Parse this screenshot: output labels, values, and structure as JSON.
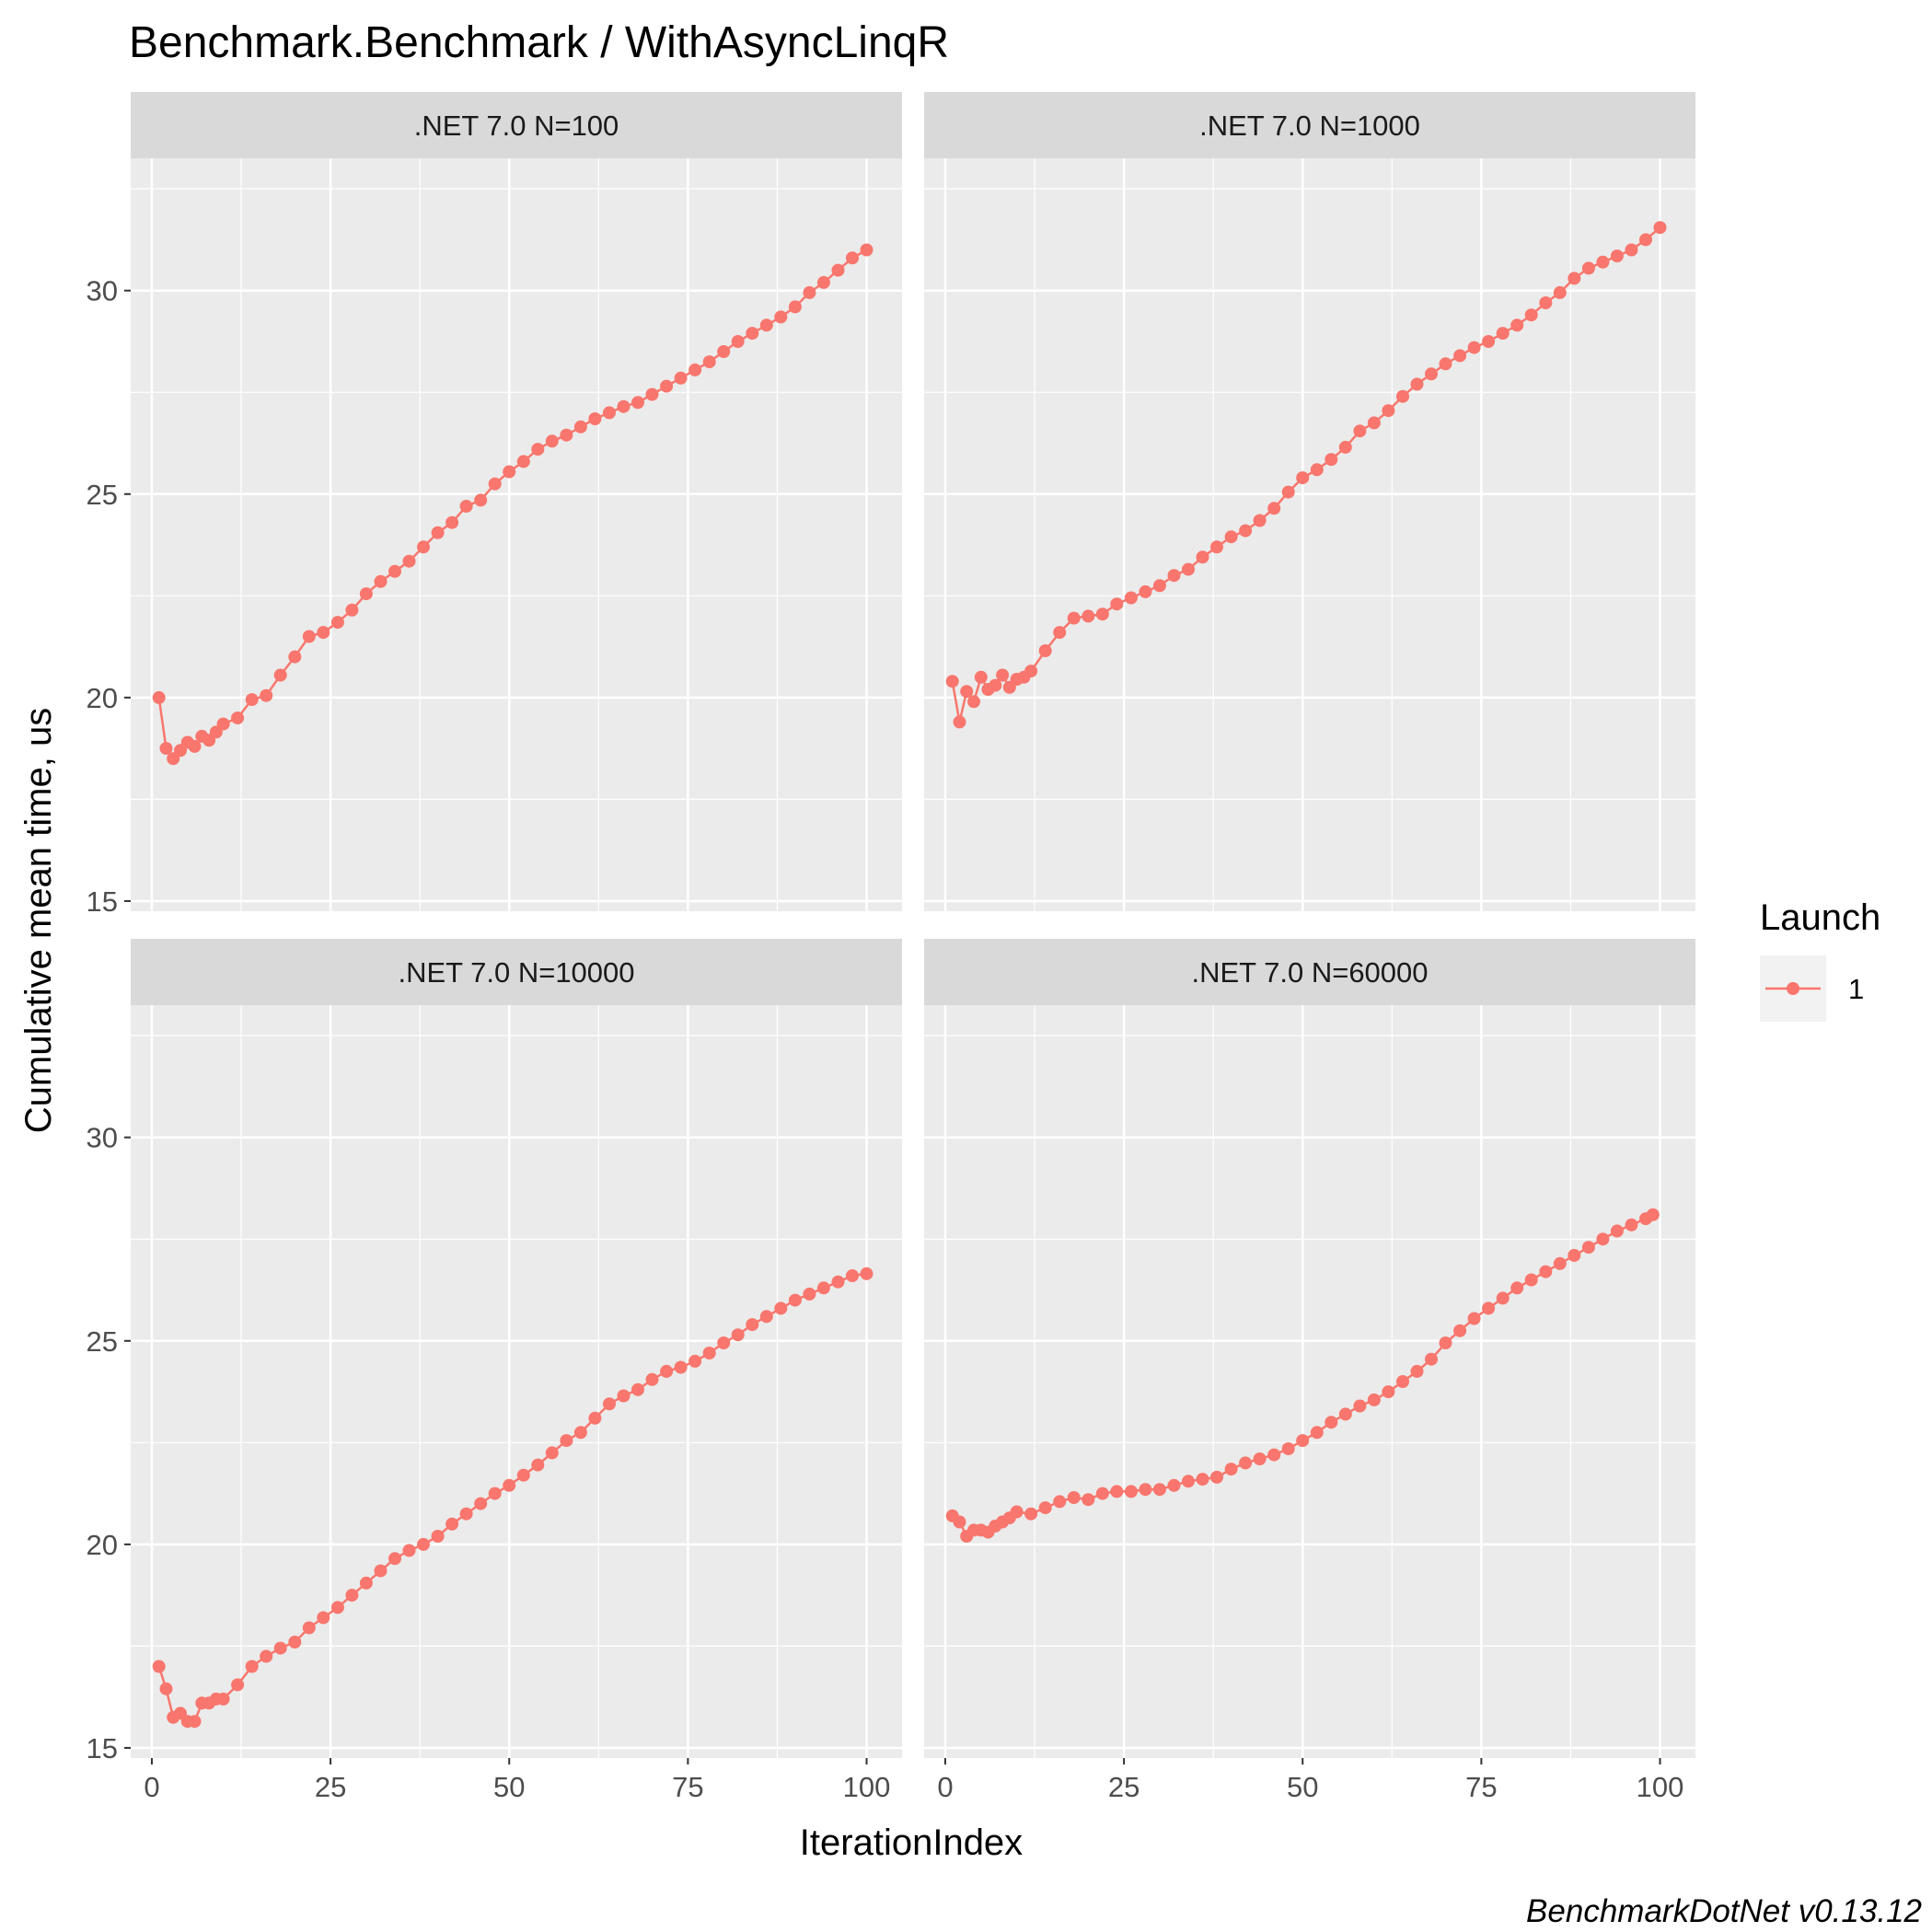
{
  "colors": {
    "series": "#F8766D",
    "panel_bg": "#EBEBEB",
    "strip_bg": "#D9D9D9",
    "grid": "#FFFFFF",
    "text": "#4D4D4D"
  },
  "title": "Benchmark.Benchmark / WithAsyncLinqR",
  "xlabel": "IterationIndex",
  "ylabel": "Cumulative mean time, us",
  "caption": "BenchmarkDotNet v0.13.12",
  "legend": {
    "title": "Launch",
    "label": "1",
    "placement": "right"
  },
  "chart_data": {
    "type": "line",
    "markers": true,
    "grid": true,
    "facet_layout": "2x2",
    "xlim": [
      1,
      100
    ],
    "ylim": [
      15,
      33
    ],
    "x_ticks": [
      0,
      25,
      50,
      75,
      100
    ],
    "y_ticks": [
      15,
      20,
      25,
      30
    ],
    "panels": [
      {
        "label": ".NET 7.0 N=100",
        "series": [
          {
            "name": "1",
            "points": [
              [
                1,
                20.0
              ],
              [
                2,
                18.75
              ],
              [
                3,
                18.5
              ],
              [
                4,
                18.7
              ],
              [
                5,
                18.9
              ],
              [
                6,
                18.8
              ],
              [
                7,
                19.05
              ],
              [
                8,
                18.95
              ],
              [
                9,
                19.15
              ],
              [
                10,
                19.35
              ],
              [
                12,
                19.5
              ],
              [
                14,
                19.95
              ],
              [
                16,
                20.05
              ],
              [
                18,
                20.55
              ],
              [
                20,
                21.0
              ],
              [
                22,
                21.5
              ],
              [
                24,
                21.6
              ],
              [
                26,
                21.85
              ],
              [
                28,
                22.15
              ],
              [
                30,
                22.55
              ],
              [
                32,
                22.85
              ],
              [
                34,
                23.1
              ],
              [
                36,
                23.35
              ],
              [
                38,
                23.7
              ],
              [
                40,
                24.05
              ],
              [
                42,
                24.3
              ],
              [
                44,
                24.7
              ],
              [
                46,
                24.85
              ],
              [
                48,
                25.25
              ],
              [
                50,
                25.55
              ],
              [
                52,
                25.8
              ],
              [
                54,
                26.1
              ],
              [
                56,
                26.3
              ],
              [
                58,
                26.45
              ],
              [
                60,
                26.65
              ],
              [
                62,
                26.85
              ],
              [
                64,
                27.0
              ],
              [
                66,
                27.15
              ],
              [
                68,
                27.25
              ],
              [
                70,
                27.45
              ],
              [
                72,
                27.65
              ],
              [
                74,
                27.85
              ],
              [
                76,
                28.05
              ],
              [
                78,
                28.25
              ],
              [
                80,
                28.5
              ],
              [
                82,
                28.75
              ],
              [
                84,
                28.95
              ],
              [
                86,
                29.15
              ],
              [
                88,
                29.35
              ],
              [
                90,
                29.6
              ],
              [
                92,
                29.95
              ],
              [
                94,
                30.2
              ],
              [
                96,
                30.5
              ],
              [
                98,
                30.8
              ],
              [
                100,
                31.0
              ]
            ]
          }
        ]
      },
      {
        "label": ".NET 7.0 N=1000",
        "series": [
          {
            "name": "1",
            "points": [
              [
                1,
                20.4
              ],
              [
                2,
                19.4
              ],
              [
                3,
                20.15
              ],
              [
                4,
                19.9
              ],
              [
                5,
                20.5
              ],
              [
                6,
                20.2
              ],
              [
                7,
                20.3
              ],
              [
                8,
                20.55
              ],
              [
                9,
                20.25
              ],
              [
                10,
                20.45
              ],
              [
                11,
                20.5
              ],
              [
                12,
                20.65
              ],
              [
                14,
                21.15
              ],
              [
                16,
                21.6
              ],
              [
                18,
                21.95
              ],
              [
                20,
                22.0
              ],
              [
                22,
                22.05
              ],
              [
                24,
                22.3
              ],
              [
                26,
                22.45
              ],
              [
                28,
                22.6
              ],
              [
                30,
                22.75
              ],
              [
                32,
                23.0
              ],
              [
                34,
                23.15
              ],
              [
                36,
                23.45
              ],
              [
                38,
                23.7
              ],
              [
                40,
                23.95
              ],
              [
                42,
                24.1
              ],
              [
                44,
                24.35
              ],
              [
                46,
                24.65
              ],
              [
                48,
                25.05
              ],
              [
                50,
                25.4
              ],
              [
                52,
                25.6
              ],
              [
                54,
                25.85
              ],
              [
                56,
                26.15
              ],
              [
                58,
                26.55
              ],
              [
                60,
                26.75
              ],
              [
                62,
                27.05
              ],
              [
                64,
                27.4
              ],
              [
                66,
                27.7
              ],
              [
                68,
                27.95
              ],
              [
                70,
                28.2
              ],
              [
                72,
                28.4
              ],
              [
                74,
                28.6
              ],
              [
                76,
                28.75
              ],
              [
                78,
                28.95
              ],
              [
                80,
                29.15
              ],
              [
                82,
                29.4
              ],
              [
                84,
                29.7
              ],
              [
                86,
                29.95
              ],
              [
                88,
                30.3
              ],
              [
                90,
                30.55
              ],
              [
                92,
                30.7
              ],
              [
                94,
                30.85
              ],
              [
                96,
                31.0
              ],
              [
                98,
                31.25
              ],
              [
                100,
                31.55
              ]
            ]
          }
        ]
      },
      {
        "label": ".NET 7.0 N=10000",
        "series": [
          {
            "name": "1",
            "points": [
              [
                1,
                17.0
              ],
              [
                2,
                16.45
              ],
              [
                3,
                15.75
              ],
              [
                4,
                15.85
              ],
              [
                5,
                15.65
              ],
              [
                6,
                15.65
              ],
              [
                7,
                16.1
              ],
              [
                8,
                16.1
              ],
              [
                9,
                16.2
              ],
              [
                10,
                16.2
              ],
              [
                12,
                16.55
              ],
              [
                14,
                17.0
              ],
              [
                16,
                17.25
              ],
              [
                18,
                17.45
              ],
              [
                20,
                17.6
              ],
              [
                22,
                17.95
              ],
              [
                24,
                18.2
              ],
              [
                26,
                18.45
              ],
              [
                28,
                18.75
              ],
              [
                30,
                19.05
              ],
              [
                32,
                19.35
              ],
              [
                34,
                19.65
              ],
              [
                36,
                19.85
              ],
              [
                38,
                20.0
              ],
              [
                40,
                20.2
              ],
              [
                42,
                20.5
              ],
              [
                44,
                20.75
              ],
              [
                46,
                21.0
              ],
              [
                48,
                21.25
              ],
              [
                50,
                21.45
              ],
              [
                52,
                21.7
              ],
              [
                54,
                21.95
              ],
              [
                56,
                22.25
              ],
              [
                58,
                22.55
              ],
              [
                60,
                22.75
              ],
              [
                62,
                23.1
              ],
              [
                64,
                23.45
              ],
              [
                66,
                23.65
              ],
              [
                68,
                23.8
              ],
              [
                70,
                24.05
              ],
              [
                72,
                24.25
              ],
              [
                74,
                24.35
              ],
              [
                76,
                24.5
              ],
              [
                78,
                24.7
              ],
              [
                80,
                24.95
              ],
              [
                82,
                25.15
              ],
              [
                84,
                25.4
              ],
              [
                86,
                25.6
              ],
              [
                88,
                25.8
              ],
              [
                90,
                26.0
              ],
              [
                92,
                26.15
              ],
              [
                94,
                26.3
              ],
              [
                96,
                26.45
              ],
              [
                98,
                26.6
              ],
              [
                100,
                26.65
              ]
            ]
          }
        ]
      },
      {
        "label": ".NET 7.0 N=60000",
        "series": [
          {
            "name": "1",
            "points": [
              [
                1,
                20.7
              ],
              [
                2,
                20.55
              ],
              [
                3,
                20.2
              ],
              [
                4,
                20.35
              ],
              [
                5,
                20.35
              ],
              [
                6,
                20.3
              ],
              [
                7,
                20.45
              ],
              [
                8,
                20.55
              ],
              [
                9,
                20.65
              ],
              [
                10,
                20.8
              ],
              [
                12,
                20.75
              ],
              [
                14,
                20.9
              ],
              [
                16,
                21.05
              ],
              [
                18,
                21.15
              ],
              [
                20,
                21.1
              ],
              [
                22,
                21.25
              ],
              [
                24,
                21.3
              ],
              [
                26,
                21.3
              ],
              [
                28,
                21.35
              ],
              [
                30,
                21.35
              ],
              [
                32,
                21.45
              ],
              [
                34,
                21.55
              ],
              [
                36,
                21.6
              ],
              [
                38,
                21.65
              ],
              [
                40,
                21.85
              ],
              [
                42,
                22.0
              ],
              [
                44,
                22.1
              ],
              [
                46,
                22.2
              ],
              [
                48,
                22.35
              ],
              [
                50,
                22.55
              ],
              [
                52,
                22.75
              ],
              [
                54,
                23.0
              ],
              [
                56,
                23.2
              ],
              [
                58,
                23.4
              ],
              [
                60,
                23.55
              ],
              [
                62,
                23.75
              ],
              [
                64,
                24.0
              ],
              [
                66,
                24.25
              ],
              [
                68,
                24.55
              ],
              [
                70,
                24.95
              ],
              [
                72,
                25.25
              ],
              [
                74,
                25.55
              ],
              [
                76,
                25.8
              ],
              [
                78,
                26.05
              ],
              [
                80,
                26.3
              ],
              [
                82,
                26.5
              ],
              [
                84,
                26.7
              ],
              [
                86,
                26.9
              ],
              [
                88,
                27.1
              ],
              [
                90,
                27.3
              ],
              [
                92,
                27.5
              ],
              [
                94,
                27.7
              ],
              [
                96,
                27.85
              ],
              [
                98,
                28.0
              ],
              [
                99,
                28.1
              ]
            ]
          }
        ]
      }
    ]
  }
}
